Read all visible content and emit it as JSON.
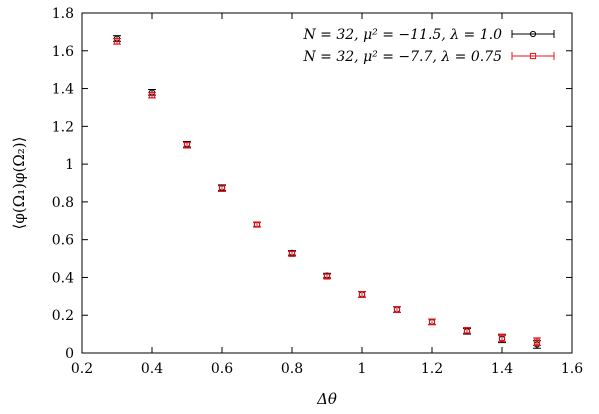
{
  "chart_data": {
    "type": "scatter",
    "title": "",
    "xlabel": "Δθ",
    "ylabel": "⟨φ(Ω₁)φ(Ω₂)⟩",
    "xlim": [
      0.2,
      1.6
    ],
    "ylim": [
      0,
      1.8
    ],
    "xticks": [
      0.2,
      0.4,
      0.6,
      0.8,
      1,
      1.2,
      1.4,
      1.6
    ],
    "yticks": [
      0,
      0.2,
      0.4,
      0.6,
      0.8,
      1,
      1.2,
      1.4,
      1.6,
      1.8
    ],
    "xtick_labels": [
      "0.2",
      "0.4",
      "0.6",
      "0.8",
      "1",
      "1.2",
      "1.4",
      "1.6"
    ],
    "ytick_labels": [
      "0",
      "0.2",
      "0.4",
      "0.6",
      "0.8",
      "1",
      "1.2",
      "1.4",
      "1.6",
      "1.8"
    ],
    "grid": false,
    "legend_position": "top-right",
    "series": [
      {
        "name": "N = 32, μ² = −11.5, λ = 1.0",
        "color": "#000000",
        "marker": "circle",
        "x": [
          0.3,
          0.4,
          0.5,
          0.6,
          0.7,
          0.8,
          0.9,
          1.0,
          1.1,
          1.2,
          1.3,
          1.4,
          1.5
        ],
        "y": [
          1.665,
          1.38,
          1.105,
          0.875,
          0.68,
          0.53,
          0.41,
          0.31,
          0.23,
          0.165,
          0.115,
          0.075,
          0.045
        ],
        "err": [
          0.015,
          0.015,
          0.015,
          0.015,
          0.012,
          0.012,
          0.012,
          0.015,
          0.015,
          0.015,
          0.015,
          0.02,
          0.02
        ]
      },
      {
        "name": "N = 32, μ² = −7.7, λ = 0.75",
        "color": "#e8141b",
        "marker": "square",
        "x": [
          0.3,
          0.4,
          0.5,
          0.6,
          0.7,
          0.8,
          0.9,
          1.0,
          1.1,
          1.2,
          1.3,
          1.4,
          1.5
        ],
        "y": [
          1.65,
          1.365,
          1.1,
          0.87,
          0.68,
          0.525,
          0.405,
          0.31,
          0.23,
          0.165,
          0.12,
          0.08,
          0.06
        ],
        "err": [
          0.015,
          0.015,
          0.015,
          0.015,
          0.012,
          0.012,
          0.012,
          0.015,
          0.015,
          0.015,
          0.015,
          0.02,
          0.02
        ]
      }
    ]
  }
}
